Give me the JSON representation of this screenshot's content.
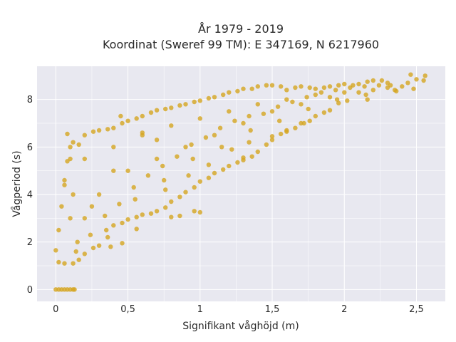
{
  "chart_data": {
    "type": "scatter",
    "title_lines": [
      "År 1979 - 2019",
      "Koordinat (Sweref 99 TM): E 347169, N 6217960"
    ],
    "xlabel": "Signifikant våghöjd (m)",
    "ylabel": "Vågperiod (s)",
    "xlim": [
      -0.13,
      2.7
    ],
    "ylim": [
      -0.5,
      9.4
    ],
    "xticks": [
      0,
      0.5,
      1,
      1.5,
      2,
      2.5
    ],
    "xtick_labels": [
      "0",
      "0,5",
      "1",
      "1,5",
      "2",
      "2,5"
    ],
    "yticks": [
      0,
      2,
      4,
      6,
      8
    ],
    "ytick_labels": [
      "0",
      "2",
      "4",
      "6",
      "8"
    ],
    "grid": true,
    "colors": {
      "marker": "#D4A520",
      "plot_bg": "#E8E8F0",
      "grid": "#FFFFFF"
    },
    "points": [
      [
        0,
        0
      ],
      [
        0.02,
        0
      ],
      [
        0.04,
        0
      ],
      [
        0.06,
        0
      ],
      [
        0.08,
        0
      ],
      [
        0.1,
        0
      ],
      [
        0.12,
        0
      ],
      [
        0.13,
        0
      ],
      [
        0.0,
        1.65
      ],
      [
        0.02,
        2.5
      ],
      [
        0.04,
        3.5
      ],
      [
        0.06,
        4.6
      ],
      [
        0.08,
        5.4
      ],
      [
        0.1,
        6.0
      ],
      [
        0.08,
        6.55
      ],
      [
        0.12,
        6.2
      ],
      [
        0.02,
        1.15
      ],
      [
        0.06,
        1.1
      ],
      [
        0.12,
        1.1
      ],
      [
        0.16,
        1.25
      ],
      [
        0.2,
        1.5
      ],
      [
        0.26,
        1.75
      ],
      [
        0.3,
        1.85
      ],
      [
        0.36,
        2.2
      ],
      [
        0.4,
        2.7
      ],
      [
        0.46,
        2.8
      ],
      [
        0.5,
        2.95
      ],
      [
        0.56,
        3.05
      ],
      [
        0.6,
        3.15
      ],
      [
        0.66,
        3.2
      ],
      [
        0.7,
        3.3
      ],
      [
        0.76,
        3.45
      ],
      [
        0.8,
        3.7
      ],
      [
        0.86,
        3.9
      ],
      [
        0.9,
        4.1
      ],
      [
        0.96,
        4.3
      ],
      [
        1.0,
        4.55
      ],
      [
        1.06,
        4.7
      ],
      [
        1.1,
        4.9
      ],
      [
        1.16,
        5.05
      ],
      [
        1.2,
        5.2
      ],
      [
        1.26,
        5.35
      ],
      [
        1.3,
        5.45
      ],
      [
        1.36,
        5.6
      ],
      [
        1.4,
        5.8
      ],
      [
        1.46,
        6.1
      ],
      [
        1.5,
        6.3
      ],
      [
        1.56,
        6.55
      ],
      [
        1.6,
        6.65
      ],
      [
        1.66,
        6.8
      ],
      [
        1.7,
        7.0
      ],
      [
        1.76,
        7.1
      ],
      [
        1.8,
        7.3
      ],
      [
        1.86,
        7.45
      ],
      [
        1.9,
        7.55
      ],
      [
        0.06,
        4.4
      ],
      [
        0.1,
        5.5
      ],
      [
        0.16,
        6.1
      ],
      [
        0.2,
        6.5
      ],
      [
        0.26,
        6.65
      ],
      [
        0.3,
        6.7
      ],
      [
        0.36,
        6.75
      ],
      [
        0.4,
        6.8
      ],
      [
        0.46,
        7.0
      ],
      [
        0.5,
        7.1
      ],
      [
        0.56,
        7.2
      ],
      [
        0.6,
        7.3
      ],
      [
        0.66,
        7.45
      ],
      [
        0.7,
        7.55
      ],
      [
        0.76,
        7.6
      ],
      [
        0.8,
        7.65
      ],
      [
        0.86,
        7.75
      ],
      [
        0.9,
        7.8
      ],
      [
        0.96,
        7.9
      ],
      [
        1.0,
        7.95
      ],
      [
        1.06,
        8.05
      ],
      [
        1.1,
        8.1
      ],
      [
        1.16,
        8.2
      ],
      [
        1.2,
        8.3
      ],
      [
        1.26,
        8.35
      ],
      [
        1.3,
        8.45
      ],
      [
        1.36,
        8.45
      ],
      [
        1.4,
        8.55
      ],
      [
        1.46,
        8.6
      ],
      [
        1.5,
        8.6
      ],
      [
        1.56,
        8.55
      ],
      [
        1.6,
        8.4
      ],
      [
        1.66,
        8.5
      ],
      [
        1.7,
        8.55
      ],
      [
        1.76,
        8.5
      ],
      [
        1.8,
        8.45
      ],
      [
        1.86,
        8.5
      ],
      [
        1.9,
        8.55
      ],
      [
        1.96,
        8.6
      ],
      [
        2.0,
        8.65
      ],
      [
        2.06,
        8.6
      ],
      [
        2.1,
        8.65
      ],
      [
        2.16,
        8.75
      ],
      [
        2.2,
        8.8
      ],
      [
        2.26,
        8.8
      ],
      [
        2.3,
        8.7
      ],
      [
        2.4,
        8.55
      ],
      [
        2.46,
        9.05
      ],
      [
        2.56,
        9.0
      ],
      [
        2.5,
        8.85
      ],
      [
        2.2,
        8.4
      ],
      [
        2.36,
        8.35
      ],
      [
        2.16,
        8.0
      ],
      [
        1.96,
        7.85
      ],
      [
        2.02,
        7.95
      ],
      [
        1.72,
        7.0
      ],
      [
        1.6,
        6.7
      ],
      [
        1.5,
        6.45
      ],
      [
        1.34,
        6.2
      ],
      [
        1.22,
        5.9
      ],
      [
        1.3,
        5.55
      ],
      [
        1.06,
        5.25
      ],
      [
        0.92,
        4.8
      ],
      [
        0.76,
        4.2
      ],
      [
        0.96,
        3.3
      ],
      [
        1.0,
        3.25
      ],
      [
        0.86,
        3.1
      ],
      [
        0.8,
        3.05
      ],
      [
        0.46,
        1.95
      ],
      [
        0.38,
        1.8
      ],
      [
        0.56,
        2.55
      ],
      [
        0.6,
        6.6
      ],
      [
        0.45,
        7.3
      ],
      [
        0.12,
        4.0
      ],
      [
        0.2,
        3.0
      ],
      [
        0.3,
        4.0
      ],
      [
        0.5,
        5.0
      ],
      [
        0.7,
        5.5
      ],
      [
        0.9,
        6.0
      ],
      [
        1.1,
        6.5
      ],
      [
        1.3,
        7.0
      ],
      [
        1.5,
        7.5
      ],
      [
        1.7,
        7.8
      ],
      [
        1.9,
        8.1
      ],
      [
        2.1,
        8.3
      ],
      [
        2.3,
        8.5
      ],
      [
        0.7,
        6.3
      ],
      [
        0.4,
        5.0
      ],
      [
        0.25,
        3.5
      ],
      [
        0.15,
        2.0
      ],
      [
        0.35,
        2.5
      ],
      [
        0.55,
        3.8
      ],
      [
        0.75,
        4.6
      ],
      [
        0.95,
        5.5
      ],
      [
        1.15,
        6.0
      ],
      [
        1.35,
        6.7
      ],
      [
        1.55,
        7.1
      ],
      [
        1.75,
        7.6
      ],
      [
        1.95,
        8.0
      ],
      [
        2.15,
        8.2
      ],
      [
        2.35,
        8.4
      ],
      [
        2.55,
        8.8
      ],
      [
        2.48,
        8.45
      ],
      [
        2.32,
        8.6
      ],
      [
        2.0,
        8.3
      ],
      [
        1.8,
        8.2
      ],
      [
        1.6,
        8.0
      ],
      [
        1.4,
        7.8
      ],
      [
        1.2,
        7.5
      ],
      [
        1.0,
        7.2
      ],
      [
        0.8,
        6.9
      ],
      [
        0.6,
        6.5
      ],
      [
        0.4,
        6.0
      ],
      [
        0.2,
        5.5
      ],
      [
        0.1,
        3.0
      ],
      [
        0.14,
        1.6
      ],
      [
        0.24,
        2.3
      ],
      [
        0.34,
        3.1
      ],
      [
        0.44,
        3.6
      ],
      [
        0.54,
        4.3
      ],
      [
        0.64,
        4.8
      ],
      [
        0.74,
        5.2
      ],
      [
        0.84,
        5.6
      ],
      [
        0.94,
        6.1
      ],
      [
        1.04,
        6.4
      ],
      [
        1.14,
        6.8
      ],
      [
        1.24,
        7.1
      ],
      [
        1.34,
        7.3
      ],
      [
        1.44,
        7.4
      ],
      [
        1.54,
        7.7
      ],
      [
        1.64,
        7.9
      ],
      [
        1.74,
        8.1
      ],
      [
        1.84,
        8.3
      ],
      [
        1.94,
        8.4
      ],
      [
        2.04,
        8.5
      ],
      [
        2.14,
        8.55
      ],
      [
        2.24,
        8.6
      ],
      [
        2.44,
        8.7
      ]
    ]
  }
}
